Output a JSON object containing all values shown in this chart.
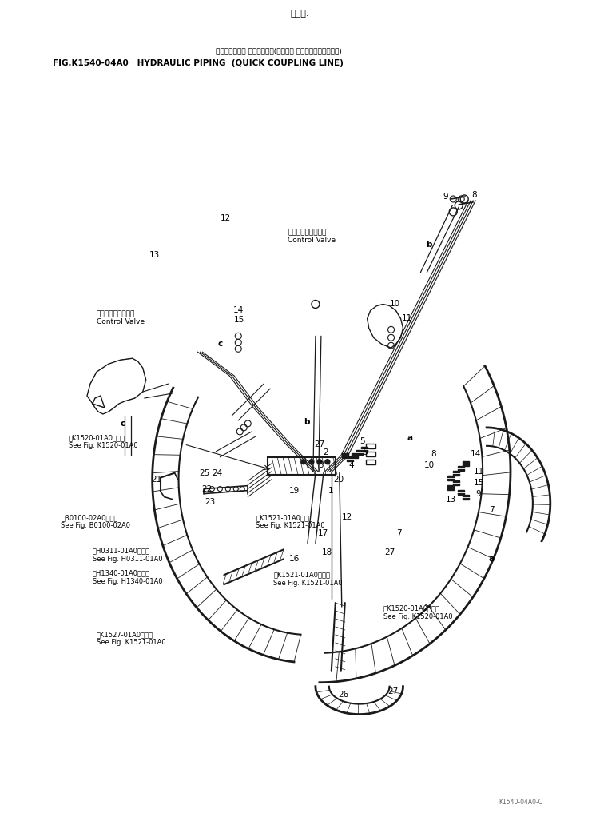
{
  "bg_color": "#ffffff",
  "line_color": "#1a1a1a",
  "text_color": "#000000",
  "title_line1": "ハイドロリック パイピング　(クイック カップリング　ライン)",
  "title_line2": "FIG.K1540-04A0   HYDRAULIC PIPING  (QUICK COUPLING LINE)",
  "page_top": "二二　.",
  "fig_width": 7.41,
  "fig_height": 10.17,
  "dpi": 100
}
